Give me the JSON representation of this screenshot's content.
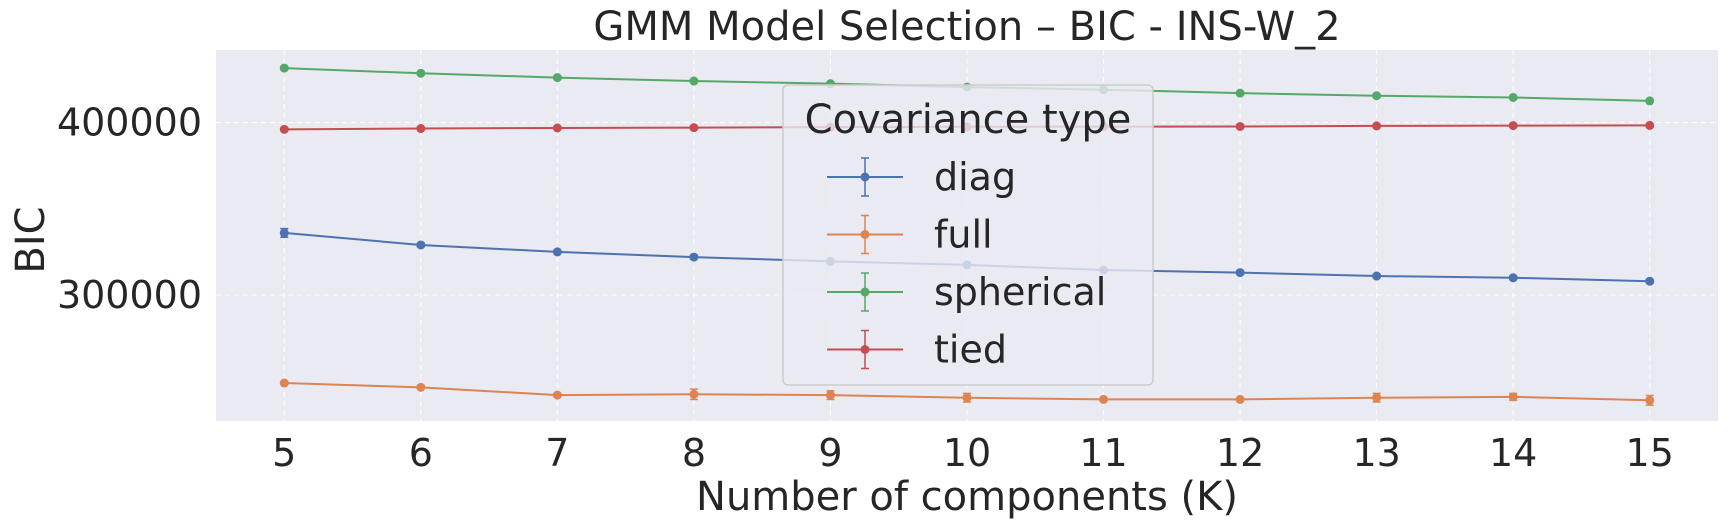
{
  "chart_data": {
    "type": "line",
    "title": "GMM Model Selection – BIC - INS-W_2",
    "xlabel": "Number of components (K)",
    "ylabel": "BIC",
    "x": [
      5,
      6,
      7,
      8,
      9,
      10,
      11,
      12,
      13,
      14,
      15
    ],
    "xticks": [
      5,
      6,
      7,
      8,
      9,
      10,
      11,
      12,
      13,
      14,
      15
    ],
    "yticks": [
      300000,
      400000
    ],
    "ylim": [
      227000,
      442000
    ],
    "grid": true,
    "legend": {
      "title": "Covariance type",
      "placement": "center"
    },
    "series": [
      {
        "name": "diag",
        "color": "#4c72b0",
        "values": [
          336000,
          329000,
          325000,
          322000,
          319500,
          317500,
          314500,
          313000,
          311000,
          310000,
          308000
        ],
        "errors": [
          2500,
          1000,
          1000,
          1000,
          1000,
          1000,
          1000,
          1000,
          1000,
          1000,
          1000
        ]
      },
      {
        "name": "full",
        "color": "#dd8452",
        "values": [
          249000,
          246500,
          242000,
          242500,
          242000,
          240500,
          239500,
          239500,
          240500,
          241000,
          239000
        ],
        "errors": [
          800,
          800,
          800,
          3000,
          2500,
          2500,
          800,
          800,
          2500,
          2000,
          2800
        ]
      },
      {
        "name": "spherical",
        "color": "#55a868",
        "values": [
          431500,
          428500,
          426000,
          424000,
          422500,
          420500,
          419000,
          417000,
          415500,
          414500,
          412500
        ],
        "errors": [
          500,
          500,
          500,
          500,
          500,
          500,
          500,
          500,
          500,
          500,
          500
        ]
      },
      {
        "name": "tied",
        "color": "#c44e52",
        "values": [
          396000,
          396500,
          396800,
          397000,
          397300,
          397500,
          397600,
          397700,
          398000,
          398200,
          398300
        ],
        "errors": [
          500,
          500,
          500,
          500,
          500,
          500,
          500,
          500,
          500,
          500,
          500
        ]
      }
    ]
  }
}
